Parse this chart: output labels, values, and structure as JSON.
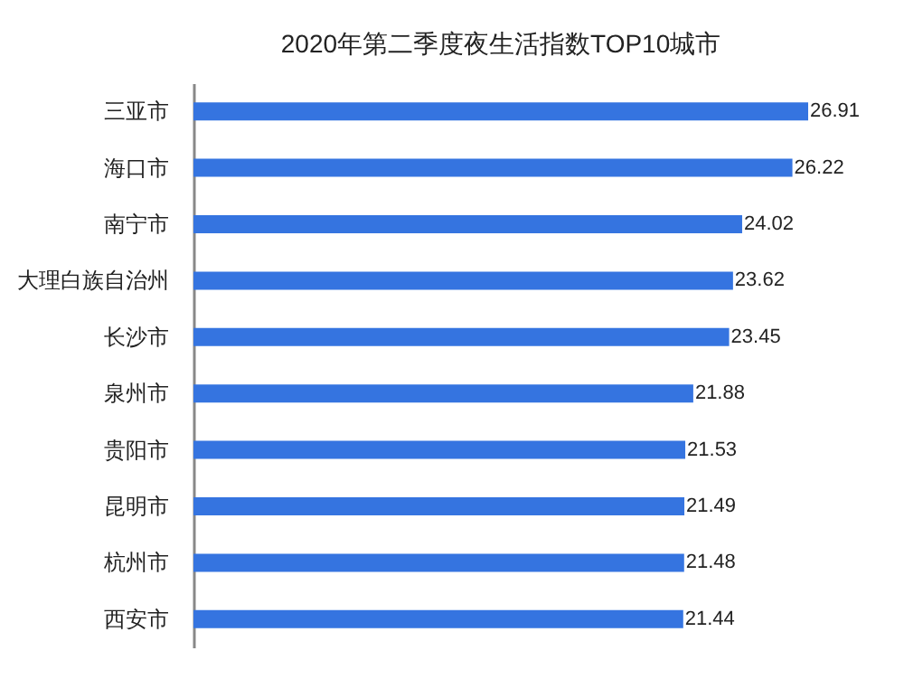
{
  "chart_data": {
    "type": "bar",
    "orientation": "horizontal",
    "title": "2020年第二季度夜生活指数TOP10城市",
    "categories": [
      "三亚市",
      "海口市",
      "南宁市",
      "大理白族自治州",
      "长沙市",
      "泉州市",
      "贵阳市",
      "昆明市",
      "杭州市",
      "西安市"
    ],
    "values": [
      26.91,
      26.22,
      24.02,
      23.62,
      23.45,
      21.88,
      21.53,
      21.49,
      21.48,
      21.44
    ],
    "color": "#3574e0",
    "data_labels": true
  }
}
